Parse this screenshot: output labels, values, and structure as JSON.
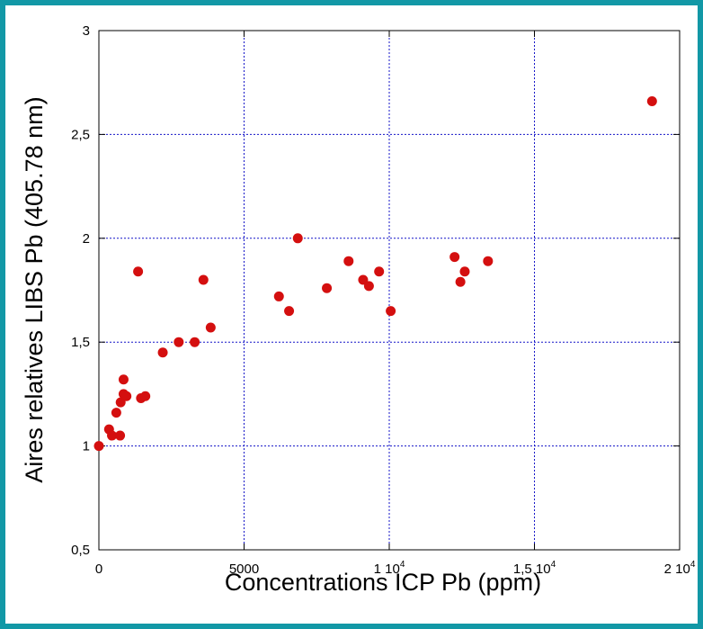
{
  "chart_data": {
    "type": "scatter",
    "xlabel": "Concentrations ICP Pb (ppm)",
    "ylabel": "Aires relatives LIBS Pb (405.78 nm)",
    "xlim": [
      0,
      20000
    ],
    "ylim": [
      0.5,
      3
    ],
    "x_ticks": [
      {
        "value": 0,
        "label": "0",
        "exp": ""
      },
      {
        "value": 5000,
        "label": "5000",
        "exp": ""
      },
      {
        "value": 10000,
        "label": "1 10",
        "exp": "4"
      },
      {
        "value": 15000,
        "label": "1,5 10",
        "exp": "4"
      },
      {
        "value": 20000,
        "label": "2 10",
        "exp": "4"
      }
    ],
    "y_ticks": [
      {
        "value": 0.5,
        "label": "0,5"
      },
      {
        "value": 1,
        "label": "1"
      },
      {
        "value": 1.5,
        "label": "1,5"
      },
      {
        "value": 2,
        "label": "2"
      },
      {
        "value": 2.5,
        "label": "2,5"
      },
      {
        "value": 3,
        "label": "3"
      }
    ],
    "grid": true,
    "marker_color": "#d40f0f",
    "grid_color": "#1414c8",
    "points": [
      {
        "x": 0,
        "y": 1.0
      },
      {
        "x": 350,
        "y": 1.08
      },
      {
        "x": 450,
        "y": 1.05
      },
      {
        "x": 600,
        "y": 1.16
      },
      {
        "x": 750,
        "y": 1.21
      },
      {
        "x": 730,
        "y": 1.05
      },
      {
        "x": 850,
        "y": 1.32
      },
      {
        "x": 850,
        "y": 1.25
      },
      {
        "x": 950,
        "y": 1.24
      },
      {
        "x": 1350,
        "y": 1.84
      },
      {
        "x": 1450,
        "y": 1.23
      },
      {
        "x": 1600,
        "y": 1.24
      },
      {
        "x": 2200,
        "y": 1.45
      },
      {
        "x": 2750,
        "y": 1.5
      },
      {
        "x": 3300,
        "y": 1.5
      },
      {
        "x": 3600,
        "y": 1.8
      },
      {
        "x": 3850,
        "y": 1.57
      },
      {
        "x": 6200,
        "y": 1.72
      },
      {
        "x": 6550,
        "y": 1.65
      },
      {
        "x": 6850,
        "y": 2.0
      },
      {
        "x": 7850,
        "y": 1.76
      },
      {
        "x": 8600,
        "y": 1.89
      },
      {
        "x": 9100,
        "y": 1.8
      },
      {
        "x": 9300,
        "y": 1.77
      },
      {
        "x": 9650,
        "y": 1.84
      },
      {
        "x": 10050,
        "y": 1.65
      },
      {
        "x": 12250,
        "y": 1.91
      },
      {
        "x": 12450,
        "y": 1.79
      },
      {
        "x": 12600,
        "y": 1.84
      },
      {
        "x": 13400,
        "y": 1.89
      },
      {
        "x": 19050,
        "y": 2.66
      }
    ]
  }
}
